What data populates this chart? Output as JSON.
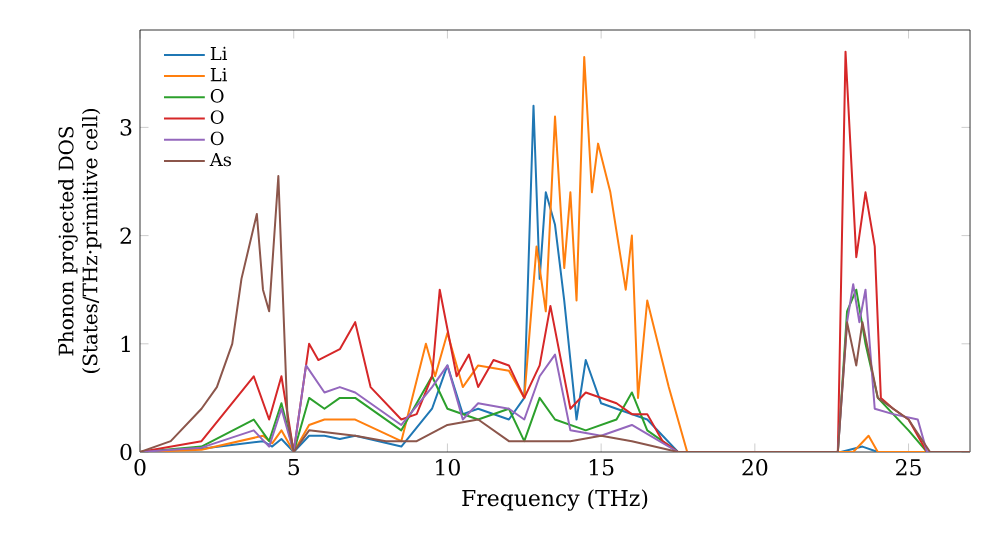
{
  "chart_data": {
    "type": "line",
    "xlabel": "Frequency (THz)",
    "ylabel": "Phonon projected DOS (States/THz·primitive cell)",
    "xlim": [
      0,
      27
    ],
    "ylim": [
      0,
      3.9
    ],
    "xticks": [
      0,
      5,
      10,
      15,
      20,
      25
    ],
    "yticks": [
      0,
      1,
      2,
      3
    ],
    "legend": "top left",
    "grid": false,
    "series": [
      {
        "name": "Li",
        "color": "#1f77b4",
        "x": [
          0,
          2,
          4,
          4.3,
          4.6,
          5.0,
          5.5,
          6.0,
          6.5,
          7.0,
          8.5,
          9.5,
          10.0,
          10.5,
          11.0,
          12.0,
          12.5,
          12.8,
          13.0,
          13.2,
          13.5,
          13.8,
          14.2,
          14.5,
          15.0,
          15.5,
          16.5,
          17.5,
          22.8,
          23.5,
          24.0,
          27
        ],
        "values": [
          0,
          0.03,
          0.1,
          0.05,
          0.12,
          0,
          0.15,
          0.15,
          0.12,
          0.15,
          0.05,
          0.4,
          0.8,
          0.35,
          0.4,
          0.3,
          0.5,
          3.2,
          1.6,
          2.4,
          2.1,
          1.4,
          0.3,
          0.85,
          0.45,
          0.4,
          0.3,
          0,
          0,
          0.05,
          0,
          0
        ]
      },
      {
        "name": "Li",
        "color": "#ff7f0e",
        "x": [
          0,
          2,
          4,
          4.3,
          4.6,
          5.0,
          5.5,
          6.0,
          7.0,
          8.5,
          9.3,
          9.6,
          10.0,
          10.5,
          11.0,
          12.0,
          12.5,
          12.9,
          13.2,
          13.5,
          13.8,
          14.0,
          14.2,
          14.45,
          14.7,
          14.9,
          15.3,
          15.8,
          16.0,
          16.2,
          16.5,
          17.2,
          17.8,
          23.2,
          23.7,
          24.0,
          27
        ],
        "values": [
          0,
          0.02,
          0.15,
          0.08,
          0.2,
          0,
          0.25,
          0.3,
          0.3,
          0.1,
          1.0,
          0.7,
          1.1,
          0.6,
          0.8,
          0.75,
          0.5,
          1.9,
          1.3,
          3.1,
          1.7,
          2.4,
          1.4,
          3.65,
          2.4,
          2.85,
          2.4,
          1.5,
          2.0,
          0.5,
          1.4,
          0.6,
          0,
          0,
          0.15,
          0,
          0
        ]
      },
      {
        "name": "O",
        "color": "#2ca02c",
        "x": [
          0,
          2,
          3.7,
          4.2,
          4.6,
          5.0,
          5.5,
          6.0,
          6.5,
          7.0,
          8.5,
          9.5,
          10.0,
          11.0,
          12.0,
          12.5,
          13.0,
          13.5,
          14.5,
          15.5,
          16.0,
          16.5,
          17.5,
          22.7,
          23.0,
          23.3,
          23.6,
          24.0,
          25.0,
          25.6,
          27
        ],
        "values": [
          0,
          0.05,
          0.3,
          0.1,
          0.45,
          0,
          0.5,
          0.4,
          0.5,
          0.5,
          0.2,
          0.7,
          0.4,
          0.3,
          0.4,
          0.1,
          0.5,
          0.3,
          0.2,
          0.3,
          0.55,
          0.2,
          0,
          0,
          1.3,
          1.5,
          1.0,
          0.5,
          0.2,
          0,
          0
        ]
      },
      {
        "name": "O",
        "color": "#d62728",
        "x": [
          0,
          2,
          3.7,
          4.2,
          4.6,
          5.0,
          5.5,
          5.8,
          6.5,
          7.0,
          7.5,
          8.5,
          9.0,
          9.5,
          9.75,
          10.3,
          10.7,
          11.0,
          11.5,
          12.0,
          12.5,
          13.0,
          13.35,
          14.0,
          14.5,
          15.5,
          16.0,
          16.5,
          17.0,
          17.5,
          22.7,
          22.95,
          23.3,
          23.6,
          23.9,
          24.1,
          24.5,
          25.0,
          25.6,
          27
        ],
        "values": [
          0,
          0.1,
          0.7,
          0.3,
          0.7,
          0,
          1.0,
          0.85,
          0.95,
          1.2,
          0.6,
          0.3,
          0.35,
          0.7,
          1.5,
          0.7,
          0.9,
          0.6,
          0.85,
          0.8,
          0.5,
          0.8,
          1.35,
          0.4,
          0.55,
          0.45,
          0.35,
          0.35,
          0.1,
          0,
          0,
          3.7,
          1.8,
          2.4,
          1.9,
          0.5,
          0.4,
          0.3,
          0,
          0
        ]
      },
      {
        "name": "O",
        "color": "#9467bd",
        "x": [
          0,
          2,
          3.7,
          4.2,
          4.6,
          5.0,
          5.4,
          6.0,
          6.5,
          7.0,
          8.5,
          9.5,
          10.0,
          10.5,
          11.0,
          12.0,
          12.5,
          13.0,
          13.5,
          14.0,
          15.0,
          16.0,
          17.5,
          22.7,
          23.0,
          23.2,
          23.4,
          23.6,
          23.9,
          24.5,
          25.3,
          25.6,
          27
        ],
        "values": [
          0,
          0.04,
          0.2,
          0.05,
          0.4,
          0,
          0.8,
          0.55,
          0.6,
          0.55,
          0.25,
          0.6,
          0.8,
          0.3,
          0.45,
          0.4,
          0.3,
          0.7,
          0.9,
          0.2,
          0.15,
          0.25,
          0,
          0,
          1.2,
          1.55,
          1.2,
          1.5,
          0.4,
          0.35,
          0.3,
          0,
          0
        ]
      },
      {
        "name": "As",
        "color": "#8c564b",
        "x": [
          0,
          1,
          2,
          2.5,
          3.0,
          3.3,
          3.8,
          4.0,
          4.2,
          4.5,
          4.8,
          5.0,
          5.5,
          7.0,
          8.0,
          9.0,
          10.0,
          11.0,
          12.0,
          13.0,
          14.0,
          15.0,
          16.0,
          17.5,
          22.7,
          23.0,
          23.3,
          23.5,
          24.0,
          25.0,
          25.7,
          27
        ],
        "values": [
          0,
          0.1,
          0.4,
          0.6,
          1.0,
          1.6,
          2.2,
          1.5,
          1.3,
          2.55,
          0.3,
          0,
          0.2,
          0.15,
          0.1,
          0.1,
          0.25,
          0.3,
          0.1,
          0.1,
          0.1,
          0.15,
          0.1,
          0,
          0,
          1.2,
          0.8,
          1.2,
          0.5,
          0.3,
          0,
          0
        ]
      }
    ]
  }
}
